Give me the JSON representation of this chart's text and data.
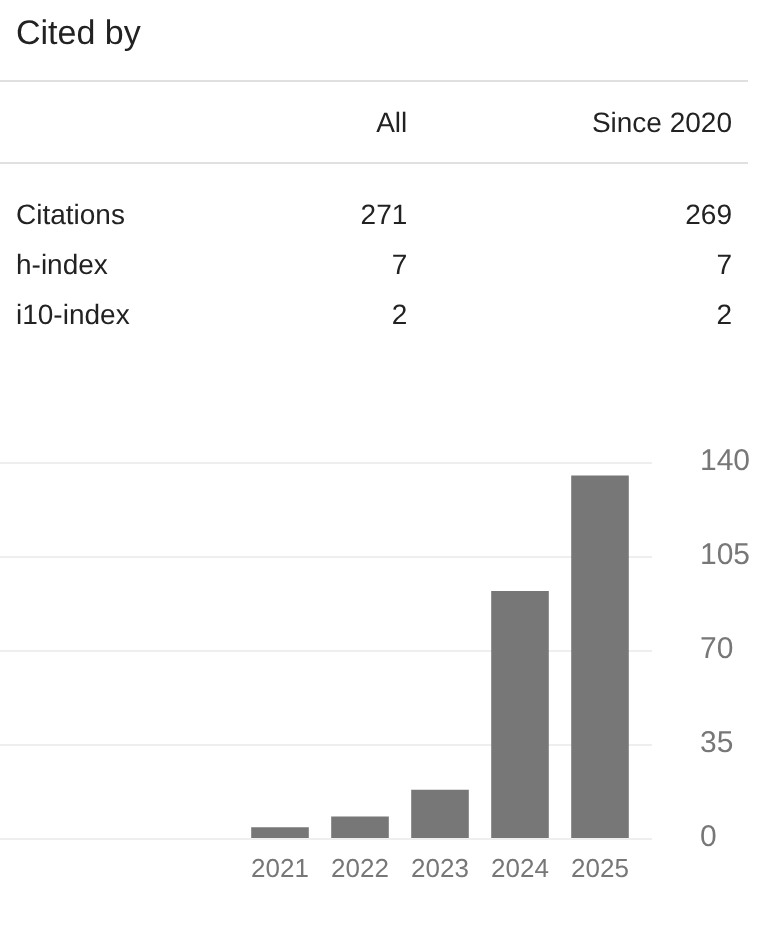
{
  "chart_data": [
    {
      "type": "other",
      "title": "Cited by",
      "categories": [
        "Citations",
        "h-index",
        "i10-index"
      ],
      "data_labels": true,
      "series": [
        {
          "name": "All",
          "values": [
            271,
            7,
            2
          ]
        },
        {
          "name": "Since 2020",
          "values": [
            269,
            7,
            2
          ]
        }
      ]
    },
    {
      "type": "bar",
      "categories": [
        "2021",
        "2022",
        "2023",
        "2024",
        "2025"
      ],
      "values": [
        4,
        8,
        18,
        92,
        135
      ],
      "color": "#777777",
      "ylim": [
        0,
        140
      ],
      "yticks": [
        0,
        35,
        70,
        105,
        140
      ],
      "grid": "y"
    }
  ]
}
